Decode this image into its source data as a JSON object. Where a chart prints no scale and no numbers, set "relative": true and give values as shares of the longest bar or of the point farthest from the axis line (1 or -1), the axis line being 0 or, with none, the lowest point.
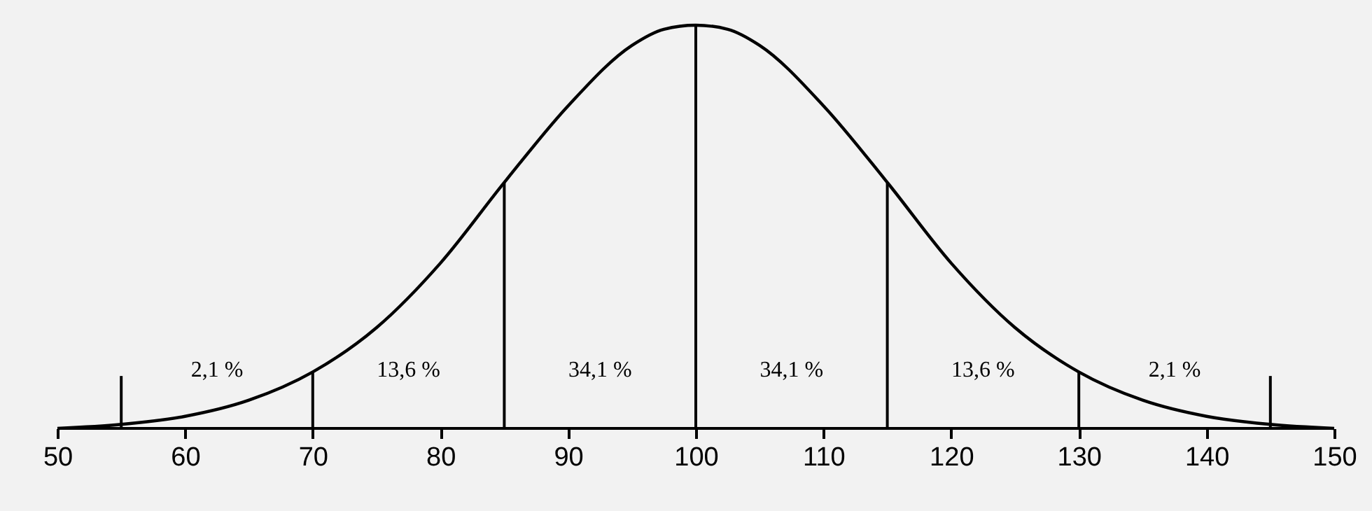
{
  "chart_data": {
    "type": "line",
    "relative": true,
    "x": [
      50,
      55,
      60,
      65,
      70,
      75,
      80,
      85,
      90,
      95,
      97.5,
      100,
      102.5,
      105,
      110,
      115,
      120,
      125,
      130,
      135,
      140,
      145,
      150
    ],
    "series": [
      {
        "color": "#000000",
        "values": [
          0.0,
          0.01,
          0.03,
          0.07,
          0.14,
          0.25,
          0.41,
          0.61,
          0.8,
          0.95,
          0.99,
          1,
          0.99,
          0.95,
          0.8,
          0.61,
          0.41,
          0.25,
          0.14,
          0.07,
          0.03,
          0.01,
          0.0
        ]
      },
      {
        "type": "bar",
        "color": "#000000",
        "x": [
          55,
          70,
          85,
          100,
          115,
          130,
          145
        ],
        "values": [
          0.13,
          0.14,
          0.61,
          1,
          0.61,
          0.14,
          0.13
        ]
      }
    ],
    "xlim": [
      50,
      150
    ],
    "xticks": [
      50,
      60,
      70,
      80,
      90,
      100,
      110,
      120,
      130,
      140,
      150
    ],
    "grid": false,
    "tick_labels": "x",
    "annotations": [
      "2,1 %",
      "13,6 %",
      "34,1 %",
      "34,1 %",
      "13,6 %",
      "2,1 %"
    ]
  }
}
